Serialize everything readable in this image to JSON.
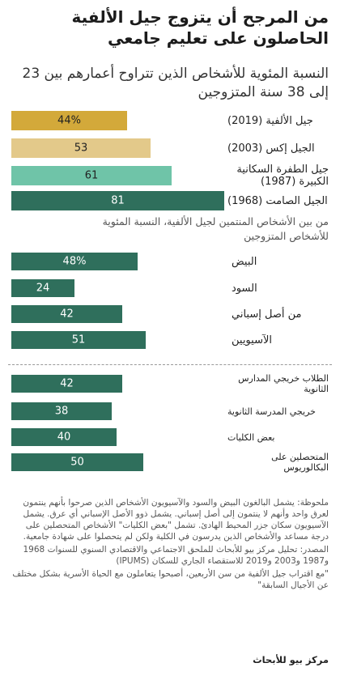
{
  "title": "من المرجح أن يتزوج جيل الألفية الحاصلون على تعليم جامعي",
  "subtitle": "النسبة المئوية للأشخاص الذين تتراوح أعمارهم بين 23 إلى 38 سنة المتزوجين",
  "colors": {
    "gold": "#d3a93a",
    "light_gold": "#e3c98a",
    "light_green": "#6fc4a8",
    "green": "#2f6f5c",
    "white": "#ffffff",
    "dark": "#222222"
  },
  "chart_data": [
    {
      "type": "bar",
      "orientation": "horizontal",
      "title": "",
      "categories": [
        "جيل الألفية (2019)",
        "الجيل إكس (2003)",
        "جيل الطفرة السكانية الكبيرة (1987)",
        "الجيل الصامت (1968)"
      ],
      "values": [
        44,
        53,
        61,
        81
      ],
      "value_labels": [
        "44%",
        "53",
        "61",
        "81"
      ],
      "xlim": [
        0,
        100
      ]
    },
    {
      "type": "bar",
      "orientation": "horizontal",
      "title": "من بين الأشخاص المنتمين لجيل الألفية، النسبة المئوية للأشخاص المتزوجين",
      "categories": [
        "البيض",
        "السود",
        "من أصل إسباني",
        "الآسيويين"
      ],
      "values": [
        48,
        24,
        42,
        51
      ],
      "value_labels": [
        "48%",
        "24",
        "42",
        "51"
      ],
      "xlim": [
        0,
        100
      ]
    },
    {
      "type": "bar",
      "orientation": "horizontal",
      "title": "",
      "categories": [
        "الطلاب خريجي المدارس الثانوية",
        "خريجي المدرسة الثانوية",
        "بعض الكليات",
        "المتحصلين على البكالوريوس"
      ],
      "values": [
        42,
        38,
        40,
        50
      ],
      "value_labels": [
        "42",
        "38",
        "40",
        "50"
      ],
      "xlim": [
        0,
        100
      ]
    }
  ],
  "notes": [
    "ملحوظة: يشمل البالغون البيض والسود والآسيويون الأشخاص الذين صرحوا بأنهم ينتمون لعرق واحد وأنهم لا ينتمون إلى أصل إسباني. يشمل ذوو الأصل الإسباني أي عرق. يشمل الآسيويون سكان جزر المحيط الهادئ. تشمل \"بعض الكليات\" الأشخاص المتحصلين على درجة مساعد والأشخاص الذين يدرسون في الكلية ولكن لم يتحصلوا على شهادة جامعية.",
    "المصدر: تحليل مركز بيو للأبحاث للملحق الاجتماعي والاقتصادي السنوي للسنوات 1968 و1987 و2003 و2019 للاستقصاء الجاري للسكان (IPUMS)",
    "\"مع اقتراب جيل الألفية من سن الأربعين، أصبحوا يتعاملون مع الحياة الأسرية بشكل مختلف عن الأجيال السابقة\""
  ],
  "brand": "مركز بيو للأبحاث"
}
